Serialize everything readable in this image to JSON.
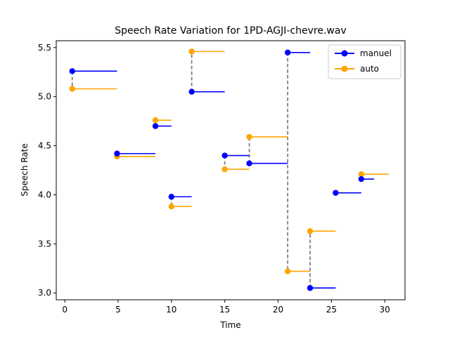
{
  "chart_data": {
    "type": "line",
    "title": "Speech Rate Variation for 1PD-AGJI-chevre.wav",
    "xlabel": "Time",
    "ylabel": "Speech Rate",
    "xlim": [
      -0.8,
      31.9
    ],
    "ylim": [
      2.93,
      5.57
    ],
    "xticks": [
      0,
      5,
      10,
      15,
      20,
      25,
      30
    ],
    "yticks": [
      3.0,
      3.5,
      4.0,
      4.5,
      5.0,
      5.5
    ],
    "xtick_labels": [
      "0",
      "5",
      "10",
      "15",
      "20",
      "25",
      "30"
    ],
    "ytick_labels": [
      "3.0",
      "3.5",
      "4.0",
      "4.5",
      "5.0",
      "5.5"
    ],
    "grid": false,
    "legend_position": "top-right",
    "colors": {
      "manuel": "#0000ff",
      "auto": "#ffa500",
      "connector": "#808080"
    },
    "series": [
      {
        "name": "manuel",
        "segments": [
          {
            "x": 0.7,
            "x_end": 4.9,
            "y": 5.26
          },
          {
            "x": 4.9,
            "x_end": 8.5,
            "y": 4.42
          },
          {
            "x": 8.5,
            "x_end": 10.0,
            "y": 4.7
          },
          {
            "x": 10.0,
            "x_end": 11.9,
            "y": 3.98
          },
          {
            "x": 11.9,
            "x_end": 15.0,
            "y": 5.05
          },
          {
            "x": 15.0,
            "x_end": 17.3,
            "y": 4.4
          },
          {
            "x": 17.3,
            "x_end": 20.9,
            "y": 4.32
          },
          {
            "x": 20.9,
            "x_end": 23.0,
            "y": 5.45
          },
          {
            "x": 23.0,
            "x_end": 25.4,
            "y": 3.05
          },
          {
            "x": 25.4,
            "x_end": 27.8,
            "y": 4.02
          },
          {
            "x": 27.8,
            "x_end": 29.0,
            "y": 4.16
          }
        ]
      },
      {
        "name": "auto",
        "segments": [
          {
            "x": 0.7,
            "x_end": 4.9,
            "y": 5.08
          },
          {
            "x": 4.9,
            "x_end": 8.5,
            "y": 4.39
          },
          {
            "x": 8.5,
            "x_end": 10.0,
            "y": 4.76
          },
          {
            "x": 10.0,
            "x_end": 11.9,
            "y": 3.88
          },
          {
            "x": 11.9,
            "x_end": 15.0,
            "y": 5.46
          },
          {
            "x": 15.0,
            "x_end": 17.3,
            "y": 4.26
          },
          {
            "x": 17.3,
            "x_end": 20.9,
            "y": 4.59
          },
          {
            "x": 20.9,
            "x_end": 23.0,
            "y": 3.22
          },
          {
            "x": 23.0,
            "x_end": 25.4,
            "y": 3.63
          },
          {
            "x": 25.4,
            "x_end": 27.8,
            "y": 4.02
          },
          {
            "x": 27.8,
            "x_end": 30.4,
            "y": 4.21
          }
        ]
      }
    ]
  }
}
